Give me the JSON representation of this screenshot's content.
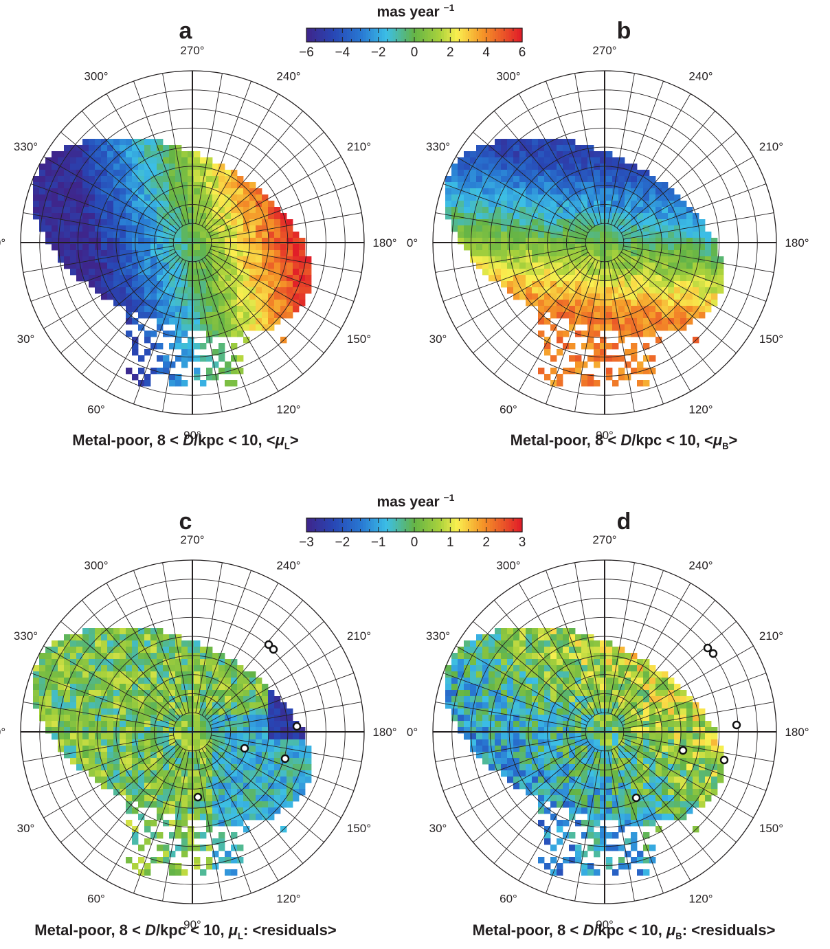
{
  "colorbars": [
    {
      "title": "mas year",
      "exponent": "−1",
      "ticks": [
        "−6",
        "−4",
        "−2",
        "0",
        "2",
        "4",
        "6"
      ]
    },
    {
      "title": "mas year",
      "exponent": "−1",
      "ticks": [
        "−3",
        "−2",
        "−1",
        "0",
        "1",
        "2",
        "3"
      ]
    }
  ],
  "angle_labels": [
    "270°",
    "240°",
    "210°",
    "180°",
    "150°",
    "120°",
    "90°",
    "60°",
    "30°",
    "0°",
    "330°",
    "300°"
  ],
  "panels": [
    {
      "letter": "a",
      "caption_pre": "Metal-poor, 8 < ",
      "caption_d": "D",
      "caption_mid": "/kpc < 10, <",
      "caption_mu": "μ",
      "caption_sub": "L",
      "caption_post": ">"
    },
    {
      "letter": "b",
      "caption_pre": "Metal-poor, 8 < ",
      "caption_d": "D",
      "caption_mid": "/kpc < 10, <",
      "caption_mu": "μ",
      "caption_sub": "B",
      "caption_post": ">"
    },
    {
      "letter": "c",
      "caption_pre": "Metal-poor, 8 < ",
      "caption_d": "D",
      "caption_mid": "/kpc < 10, ",
      "caption_mu": "μ",
      "caption_sub": "L",
      "caption_post": ": <residuals>"
    },
    {
      "letter": "d",
      "caption_pre": "Metal-poor, 8 < ",
      "caption_d": "D",
      "caption_mid": "/kpc < 10, ",
      "caption_mu": "μ",
      "caption_sub": "B",
      "caption_post": ": <residuals>"
    }
  ],
  "chart_data": [
    {
      "type": "heatmap",
      "panel": "a",
      "projection": "polar",
      "color_range": [
        -6,
        6
      ],
      "colormap": "jet",
      "pattern": "negative (blue) toward 0°–30°, positive (red) toward 180°–210°",
      "white_circles": []
    },
    {
      "type": "heatmap",
      "panel": "b",
      "projection": "polar",
      "color_range": [
        -6,
        6
      ],
      "colormap": "jet",
      "pattern": "negative (blue) toward 210°–240°, positive (orange) toward 90°–120°",
      "white_circles": []
    },
    {
      "type": "heatmap",
      "panel": "c",
      "projection": "polar",
      "color_range": [
        -3,
        3
      ],
      "colormap": "jet",
      "pattern": "near zero overall, strongly negative band along the outer edge at 180°–210°",
      "white_circles": 6
    },
    {
      "type": "heatmap",
      "panel": "d",
      "projection": "polar",
      "color_range": [
        -3,
        3
      ],
      "colormap": "jet",
      "pattern": "slightly negative toward 30°–90°, slightly positive toward 180°–240°",
      "white_circles": 6
    }
  ]
}
